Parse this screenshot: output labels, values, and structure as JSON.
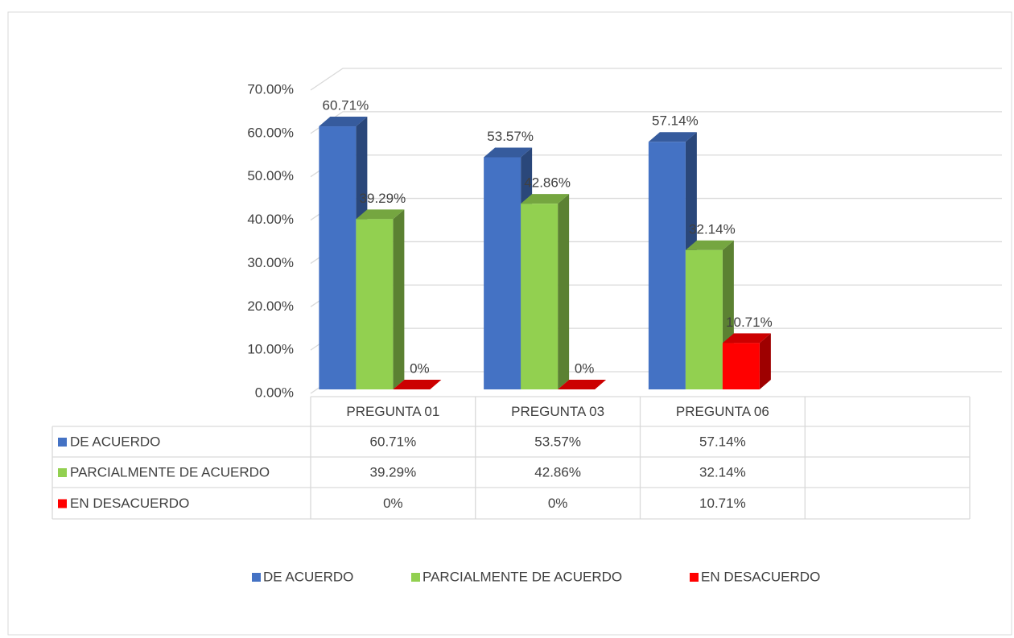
{
  "chart_data": {
    "type": "bar3d",
    "categories": [
      "PREGUNTA 01",
      "PREGUNTA 03",
      "PREGUNTA 06",
      null
    ],
    "series": [
      {
        "name": "DE ACUERDO",
        "color": "#4472c4",
        "values": [
          60.71,
          53.57,
          57.14,
          null
        ],
        "value_labels": [
          "60.71%",
          "53.57%",
          "57.14%",
          null
        ]
      },
      {
        "name": "PARCIALMENTE DE ACUERDO",
        "color": "#92d050",
        "values": [
          39.29,
          42.86,
          32.14,
          null
        ],
        "value_labels": [
          "39.29%",
          "42.86%",
          "32.14%",
          null
        ]
      },
      {
        "name": "EN DESACUERDO",
        "color": "#ff0000",
        "values": [
          0,
          0,
          10.71,
          null
        ],
        "value_labels": [
          "0%",
          "0%",
          "10.71%",
          null
        ]
      }
    ],
    "ylim": [
      0,
      70
    ],
    "yticks": [
      {
        "value": 0,
        "label": "0.00%"
      },
      {
        "value": 10,
        "label": "10.00%"
      },
      {
        "value": 20,
        "label": "20.00%"
      },
      {
        "value": 30,
        "label": "30.00%"
      },
      {
        "value": 40,
        "label": "40.00%"
      },
      {
        "value": 50,
        "label": "50.00%"
      },
      {
        "value": 60,
        "label": "60.00%"
      },
      {
        "value": 70,
        "label": "70.00%"
      }
    ],
    "grid": true,
    "legend": "bottom",
    "data_table": true
  }
}
